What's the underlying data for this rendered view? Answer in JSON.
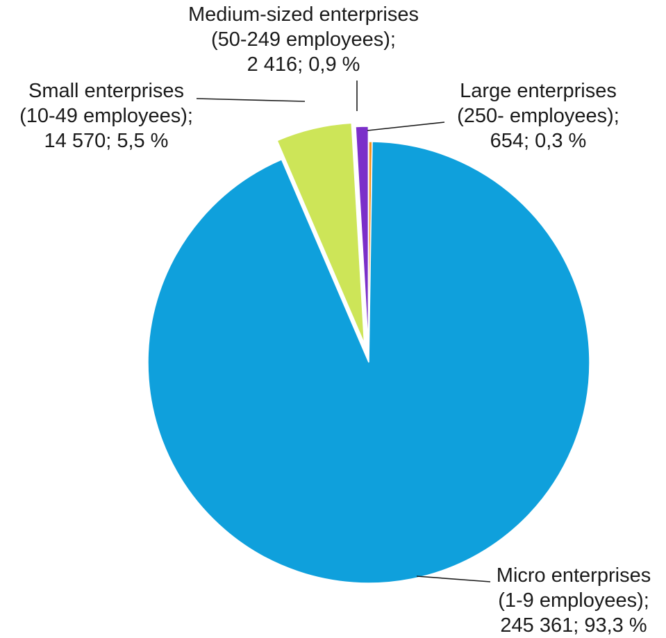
{
  "chart_data": {
    "type": "pie",
    "title": "",
    "start_angle_deg": 0,
    "direction": "clockwise",
    "slices": [
      {
        "name": "Large enterprises",
        "value": 654,
        "percent": 0.3,
        "color": "#F7941D",
        "label_lines": [
          "Large enterprises",
          "(250- employees);",
          "654; 0,3 %"
        ]
      },
      {
        "name": "Micro enterprises",
        "value": 245361,
        "percent": 93.3,
        "color": "#0FA0DC",
        "label_lines": [
          "Micro enterprises",
          "(1-9 employees);",
          "245 361; 93,3 %"
        ]
      },
      {
        "name": "Small enterprises",
        "value": 14570,
        "percent": 5.5,
        "color": "#CDE558",
        "label_lines": [
          "Small enterprises",
          "(10-49 employees);",
          "14 570; 5,5 %"
        ]
      },
      {
        "name": "Medium-sized enterprises",
        "value": 2416,
        "percent": 0.9,
        "color": "#7B2FC9",
        "label_lines": [
          "Medium-sized enterprises",
          "(50-249 employees);",
          "2 416; 0,9 %"
        ]
      }
    ]
  }
}
